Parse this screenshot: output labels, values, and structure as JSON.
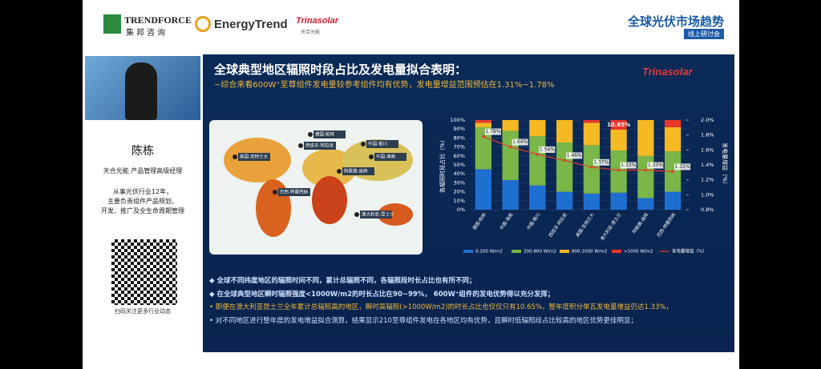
{
  "header": {
    "trendforce": "TRENDFORCE",
    "trendforce_cn": "集邦咨询",
    "energytrend": "EnergyTrend",
    "trina": "Trinasolar",
    "trina_cn": "天合光能",
    "event": "全球光伏市场趋势",
    "event_sub": "线上研讨会"
  },
  "presenter": {
    "name": "陈栋",
    "role": "天合光能  产品管理高级经理",
    "bio": [
      "从事光伏行业12年，",
      "主要负责组件产品规划、",
      "开发、推广及全生命周期管理"
    ],
    "qr_caption": "扫码关注更多行业动态"
  },
  "slide": {
    "title": "全球典型地区辐照时段占比及发电量拟合表明：",
    "subtitle": "~综合来看600W⁺至尊组件发电量较参考组件均有优势，发电量增益范围预估在1.31%~1.78%",
    "logo": "Trinasolar",
    "map_labels": [
      "德国-柏林",
      "西班牙-阿拉贡",
      "中国-银川",
      "中国-海南",
      "美国-亚特兰大",
      "阿联酋-迪拜",
      "巴西-特雷西纳",
      "澳大利亚-昆士兰"
    ],
    "bullets": [
      "全球不同纬度地区的辐照时间不同，累计总辐照不同，各辐照段时长占比也有所不同；",
      "在全球典型地区瞬时辐照强度<1000W/m2的时长占比在90~99%，  600W⁺组件的发电优势得以充分发挥；",
      "即便在澳大利亚昆士兰全年累计总辐照高的地区，瞬时高辐照(>1000W/m2)的时长占比也仅仅只有10.65%，整年度积分单瓦发电量增益仍达1.33%，",
      "对不同地区进行整年度的发电增益拟合测算，结果显示210至尊组件发电在各地区均有优势，且瞬时低辐照段占比较高的地区优势更佳明显；"
    ]
  },
  "chart_data": {
    "type": "bar",
    "stacked": true,
    "ylabel": "各辐照时段占比（%）",
    "y2label": "发电量增益（%）",
    "categories": [
      "德国-柏林",
      "中国-海南",
      "中国-银川",
      "西班牙-阿拉贡",
      "美国-亚特兰大",
      "澳大利亚-昆士兰",
      "阿联酋-迪拜",
      "巴西-特雷西纳"
    ],
    "ylim": [
      0,
      100
    ],
    "yticks": [
      {
        "value": 0,
        "label": "0%"
      },
      {
        "value": 10,
        "label": "10%"
      },
      {
        "value": 20,
        "label": "20%"
      },
      {
        "value": 30,
        "label": "30%"
      },
      {
        "value": 40,
        "label": "40%"
      },
      {
        "value": 50,
        "label": "50%"
      },
      {
        "value": 60,
        "label": "60%"
      },
      {
        "value": 70,
        "label": "70%"
      },
      {
        "value": 80,
        "label": "80%"
      },
      {
        "value": 90,
        "label": "90%"
      },
      {
        "value": 100,
        "label": "100%"
      }
    ],
    "y2lim": [
      0.8,
      2.0
    ],
    "y2ticks": [
      {
        "value": 0.8,
        "label": "0.8%"
      },
      {
        "value": 1.0,
        "label": "1.0%"
      },
      {
        "value": 1.2,
        "label": "1.2%"
      },
      {
        "value": 1.4,
        "label": "1.4%"
      },
      {
        "value": 1.6,
        "label": "1.6%"
      },
      {
        "value": 1.8,
        "label": "1.8%"
      },
      {
        "value": 2.0,
        "label": "2.0%"
      }
    ],
    "series": [
      {
        "name": "0-200 W/m2",
        "color": "#1f6fd1",
        "values": [
          45,
          33,
          27,
          20,
          18,
          19,
          13,
          20
        ]
      },
      {
        "name": "200-800 W/m2",
        "color": "#7ab648",
        "values": [
          47,
          55,
          55,
          55,
          54,
          47,
          47,
          45
        ]
      },
      {
        "name": "800-1000 W/m2",
        "color": "#f5b921",
        "values": [
          5,
          12,
          18,
          25,
          25,
          23.35,
          40,
          27
        ]
      },
      {
        "name": ">1000 W/m2",
        "color": "#e8372c",
        "values": [
          3,
          0,
          0,
          0,
          3,
          10.65,
          0,
          8
        ],
        "value_labels": [
          null,
          null,
          null,
          null,
          null,
          "10.65%",
          null,
          null
        ]
      },
      {
        "name": "发电量增益（%）",
        "color": "#e0402c",
        "type": "line",
        "axis": "y2",
        "values": [
          1.78,
          1.64,
          1.54,
          1.46,
          1.37,
          1.33,
          1.33,
          1.31
        ],
        "value_labels": [
          "1.78%",
          "1.64%",
          "1.54%",
          "1.46%",
          "1.37%",
          "1.33%",
          "1.33%",
          "1.31%"
        ]
      }
    ]
  }
}
